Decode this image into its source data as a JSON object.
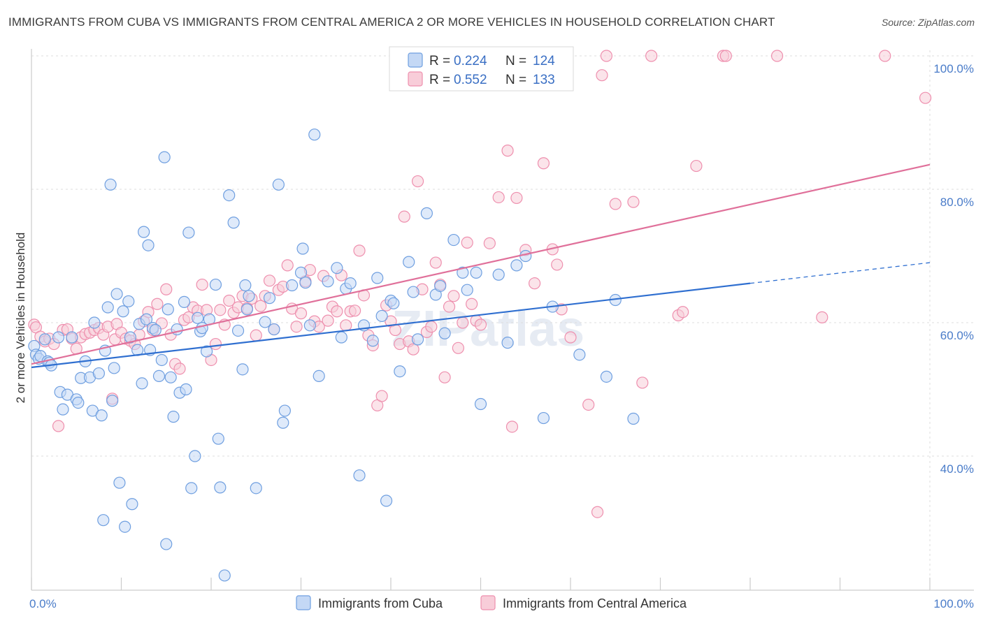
{
  "title": "IMMIGRANTS FROM CUBA VS IMMIGRANTS FROM CENTRAL AMERICA 2 OR MORE VEHICLES IN HOUSEHOLD CORRELATION CHART",
  "source": "Source: ZipAtlas.com",
  "watermark": "ZIPatlas",
  "colors": {
    "cuba": "#6f9fe0",
    "cuba_fill": "#c4d8f5",
    "central_america": "#ee8fae",
    "central_america_fill": "#f8cdd9",
    "cuba_line": "#2f6fd0",
    "central_america_line": "#e0709a",
    "axis_text": "#4a7cc9"
  },
  "legend": {
    "cuba": {
      "r_label": "R =",
      "r_value": "0.224",
      "n_label": "N =",
      "n_value": "124"
    },
    "central_america": {
      "r_label": "R =",
      "r_value": "0.552",
      "n_label": "N =",
      "n_value": "133"
    }
  },
  "chart_data": {
    "type": "scatter",
    "title": "IMMIGRANTS FROM CUBA VS IMMIGRANTS FROM CENTRAL AMERICA 2 OR MORE VEHICLES IN HOUSEHOLD CORRELATION CHART",
    "xlabel": "",
    "ylabel": "2 or more Vehicles in Household",
    "xlim": [
      0,
      100
    ],
    "ylim": [
      20,
      102
    ],
    "x_tick_labels": [
      "0.0%",
      "100.0%"
    ],
    "y_ticks": [
      40,
      60,
      80,
      100
    ],
    "y_tick_labels": [
      "40.0%",
      "60.0%",
      "80.0%",
      "100.0%"
    ],
    "grid": true,
    "legend_position": "top-center",
    "series": [
      {
        "name": "Immigrants from Cuba",
        "color": "#6f9fe0",
        "trend": {
          "x": [
            0,
            80,
            100
          ],
          "y": [
            53.3,
            65.9,
            69.0
          ],
          "dashed_from_x": 80
        },
        "points": [
          [
            0.3,
            56.5
          ],
          [
            0.5,
            55.2
          ],
          [
            0.8,
            54.6
          ],
          [
            1.0,
            55.0
          ],
          [
            1.5,
            57.5
          ],
          [
            1.8,
            54.2
          ],
          [
            2.0,
            54.0
          ],
          [
            2.2,
            53.6
          ],
          [
            3.0,
            57.8
          ],
          [
            3.2,
            49.6
          ],
          [
            3.5,
            47.0
          ],
          [
            4.0,
            49.2
          ],
          [
            4.5,
            57.8
          ],
          [
            5.0,
            48.5
          ],
          [
            5.2,
            48.0
          ],
          [
            5.5,
            51.7
          ],
          [
            6.0,
            54.2
          ],
          [
            6.5,
            51.8
          ],
          [
            6.8,
            46.8
          ],
          [
            7.0,
            60.0
          ],
          [
            7.5,
            52.4
          ],
          [
            7.8,
            46.1
          ],
          [
            8.0,
            30.4
          ],
          [
            8.2,
            55.8
          ],
          [
            8.5,
            62.3
          ],
          [
            8.8,
            80.7
          ],
          [
            9.0,
            48.3
          ],
          [
            9.2,
            53.2
          ],
          [
            9.5,
            64.3
          ],
          [
            9.8,
            36.0
          ],
          [
            10.2,
            61.7
          ],
          [
            10.4,
            29.4
          ],
          [
            10.8,
            63.2
          ],
          [
            11.0,
            57.8
          ],
          [
            11.2,
            32.8
          ],
          [
            11.8,
            55.9
          ],
          [
            12.0,
            59.8
          ],
          [
            12.3,
            50.9
          ],
          [
            12.5,
            73.6
          ],
          [
            12.8,
            60.5
          ],
          [
            13.0,
            71.6
          ],
          [
            13.2,
            55.9
          ],
          [
            13.5,
            59.2
          ],
          [
            13.8,
            58.9
          ],
          [
            14.2,
            52.0
          ],
          [
            14.5,
            54.4
          ],
          [
            14.8,
            84.8
          ],
          [
            15.0,
            26.8
          ],
          [
            15.2,
            62.0
          ],
          [
            15.5,
            51.8
          ],
          [
            15.8,
            45.9
          ],
          [
            16.2,
            59.0
          ],
          [
            16.5,
            49.5
          ],
          [
            17.0,
            63.1
          ],
          [
            17.2,
            50.0
          ],
          [
            17.5,
            73.5
          ],
          [
            17.8,
            35.2
          ],
          [
            18.2,
            40.0
          ],
          [
            18.5,
            60.7
          ],
          [
            18.8,
            58.7
          ],
          [
            19.0,
            59.2
          ],
          [
            19.5,
            55.7
          ],
          [
            19.8,
            60.5
          ],
          [
            20.5,
            65.7
          ],
          [
            20.8,
            42.6
          ],
          [
            21.0,
            35.3
          ],
          [
            21.5,
            22.1
          ],
          [
            22.0,
            79.1
          ],
          [
            22.5,
            75.0
          ],
          [
            23.0,
            58.8
          ],
          [
            23.5,
            53.0
          ],
          [
            23.8,
            65.6
          ],
          [
            24.0,
            62.0
          ],
          [
            24.2,
            64.0
          ],
          [
            25.0,
            35.2
          ],
          [
            26.0,
            60.1
          ],
          [
            26.5,
            63.7
          ],
          [
            27.0,
            59.0
          ],
          [
            27.5,
            80.7
          ],
          [
            28.0,
            45.0
          ],
          [
            28.2,
            46.8
          ],
          [
            29.0,
            65.6
          ],
          [
            30.0,
            67.5
          ],
          [
            30.2,
            71.1
          ],
          [
            30.5,
            66.0
          ],
          [
            31.0,
            59.6
          ],
          [
            31.5,
            88.2
          ],
          [
            32.0,
            52.0
          ],
          [
            33.0,
            66.2
          ],
          [
            34.0,
            68.2
          ],
          [
            34.5,
            57.8
          ],
          [
            35.0,
            65.1
          ],
          [
            35.5,
            65.9
          ],
          [
            36.5,
            37.1
          ],
          [
            37.0,
            59.6
          ],
          [
            38.0,
            57.3
          ],
          [
            38.5,
            66.7
          ],
          [
            39.0,
            61.0
          ],
          [
            39.5,
            33.3
          ],
          [
            40.0,
            63.3
          ],
          [
            40.3,
            62.9
          ],
          [
            41.0,
            52.7
          ],
          [
            42.0,
            69.1
          ],
          [
            42.5,
            64.6
          ],
          [
            43.0,
            57.5
          ],
          [
            44.0,
            76.4
          ],
          [
            45.0,
            64.2
          ],
          [
            45.5,
            65.5
          ],
          [
            46.0,
            58.4
          ],
          [
            47.0,
            72.4
          ],
          [
            48.0,
            67.5
          ],
          [
            48.5,
            64.9
          ],
          [
            49.5,
            67.5
          ],
          [
            50.0,
            47.8
          ],
          [
            52.0,
            67.2
          ],
          [
            53.0,
            57.0
          ],
          [
            54.0,
            68.6
          ],
          [
            55.0,
            70.0
          ],
          [
            57.0,
            45.7
          ],
          [
            58.0,
            62.4
          ],
          [
            61.0,
            55.2
          ],
          [
            64.0,
            51.9
          ],
          [
            65.0,
            63.4
          ],
          [
            67.0,
            45.6
          ]
        ]
      },
      {
        "name": "Immigrants from Central America",
        "color": "#ee8fae",
        "trend": {
          "x": [
            0,
            100
          ],
          "y": [
            53.8,
            83.7
          ]
        },
        "points": [
          [
            0.3,
            59.7
          ],
          [
            0.5,
            59.3
          ],
          [
            1.0,
            57.9
          ],
          [
            1.5,
            57.2
          ],
          [
            2.0,
            57.6
          ],
          [
            2.5,
            56.8
          ],
          [
            3.0,
            44.5
          ],
          [
            3.5,
            58.9
          ],
          [
            4.0,
            59.0
          ],
          [
            4.5,
            57.6
          ],
          [
            5.0,
            56.1
          ],
          [
            5.5,
            57.8
          ],
          [
            6.0,
            58.3
          ],
          [
            6.5,
            58.5
          ],
          [
            7.0,
            58.9
          ],
          [
            7.5,
            59.2
          ],
          [
            8.0,
            58.2
          ],
          [
            8.5,
            59.4
          ],
          [
            9.0,
            48.6
          ],
          [
            9.3,
            57.5
          ],
          [
            9.5,
            59.8
          ],
          [
            10.0,
            58.5
          ],
          [
            10.5,
            57.6
          ],
          [
            11.0,
            57.3
          ],
          [
            11.5,
            56.8
          ],
          [
            12.0,
            58.2
          ],
          [
            12.5,
            60.2
          ],
          [
            13.0,
            61.6
          ],
          [
            13.5,
            58.9
          ],
          [
            14.0,
            62.8
          ],
          [
            14.5,
            59.9
          ],
          [
            15.0,
            65.0
          ],
          [
            15.5,
            58.2
          ],
          [
            16.0,
            53.8
          ],
          [
            16.5,
            53.1
          ],
          [
            17.0,
            60.4
          ],
          [
            17.5,
            60.8
          ],
          [
            18.0,
            62.3
          ],
          [
            18.5,
            61.8
          ],
          [
            19.0,
            65.7
          ],
          [
            19.5,
            61.9
          ],
          [
            20.0,
            54.4
          ],
          [
            20.5,
            56.8
          ],
          [
            21.0,
            61.9
          ],
          [
            21.5,
            59.7
          ],
          [
            22.0,
            63.3
          ],
          [
            22.5,
            61.5
          ],
          [
            23.0,
            62.3
          ],
          [
            23.5,
            64.0
          ],
          [
            24.0,
            62.2
          ],
          [
            24.5,
            63.6
          ],
          [
            25.0,
            58.1
          ],
          [
            25.5,
            62.5
          ],
          [
            26.0,
            64.0
          ],
          [
            26.5,
            66.3
          ],
          [
            27.0,
            59.0
          ],
          [
            27.5,
            64.9
          ],
          [
            28.0,
            65.4
          ],
          [
            28.5,
            68.6
          ],
          [
            29.0,
            62.1
          ],
          [
            29.5,
            59.4
          ],
          [
            30.0,
            61.4
          ],
          [
            30.5,
            66.2
          ],
          [
            31.0,
            67.9
          ],
          [
            31.5,
            60.2
          ],
          [
            32.0,
            59.4
          ],
          [
            32.5,
            67.0
          ],
          [
            33.0,
            60.3
          ],
          [
            33.5,
            62.4
          ],
          [
            34.0,
            61.7
          ],
          [
            34.5,
            67.1
          ],
          [
            35.0,
            59.6
          ],
          [
            35.5,
            61.7
          ],
          [
            36.0,
            61.8
          ],
          [
            36.5,
            70.8
          ],
          [
            37.0,
            64.1
          ],
          [
            37.5,
            58.1
          ],
          [
            38.0,
            56.6
          ],
          [
            38.5,
            47.6
          ],
          [
            39.0,
            49.0
          ],
          [
            39.5,
            62.6
          ],
          [
            40.0,
            60.2
          ],
          [
            40.5,
            58.9
          ],
          [
            41.0,
            56.8
          ],
          [
            41.5,
            75.9
          ],
          [
            42.0,
            57.2
          ],
          [
            42.5,
            56.0
          ],
          [
            43.0,
            81.2
          ],
          [
            43.5,
            65.0
          ],
          [
            44.0,
            58.6
          ],
          [
            44.5,
            59.4
          ],
          [
            45.0,
            69.0
          ],
          [
            45.5,
            65.7
          ],
          [
            46.0,
            51.8
          ],
          [
            46.5,
            62.4
          ],
          [
            47.0,
            64.0
          ],
          [
            47.5,
            56.2
          ],
          [
            48.0,
            60.0
          ],
          [
            48.5,
            72.0
          ],
          [
            49.0,
            62.8
          ],
          [
            49.5,
            60.3
          ],
          [
            50.0,
            59.7
          ],
          [
            51.0,
            71.9
          ],
          [
            52.0,
            78.8
          ],
          [
            53.0,
            85.8
          ],
          [
            53.5,
            44.4
          ],
          [
            54.0,
            78.7
          ],
          [
            55.0,
            70.9
          ],
          [
            56.0,
            65.9
          ],
          [
            57.0,
            83.9
          ],
          [
            58.0,
            71.0
          ],
          [
            58.5,
            68.7
          ],
          [
            59.0,
            62.0
          ],
          [
            60.0,
            57.8
          ],
          [
            62.0,
            47.7
          ],
          [
            63.0,
            31.6
          ],
          [
            63.5,
            97.1
          ],
          [
            64.0,
            100.0
          ],
          [
            65.0,
            77.8
          ],
          [
            67.0,
            78.1
          ],
          [
            68.0,
            51.0
          ],
          [
            69.0,
            100.0
          ],
          [
            72.0,
            61.1
          ],
          [
            72.5,
            61.6
          ],
          [
            74.0,
            83.5
          ],
          [
            77.0,
            100.0
          ],
          [
            77.3,
            100.0
          ],
          [
            83.0,
            100.0
          ],
          [
            88.0,
            60.8
          ],
          [
            95.0,
            100.0
          ],
          [
            99.5,
            93.7
          ]
        ]
      }
    ]
  }
}
